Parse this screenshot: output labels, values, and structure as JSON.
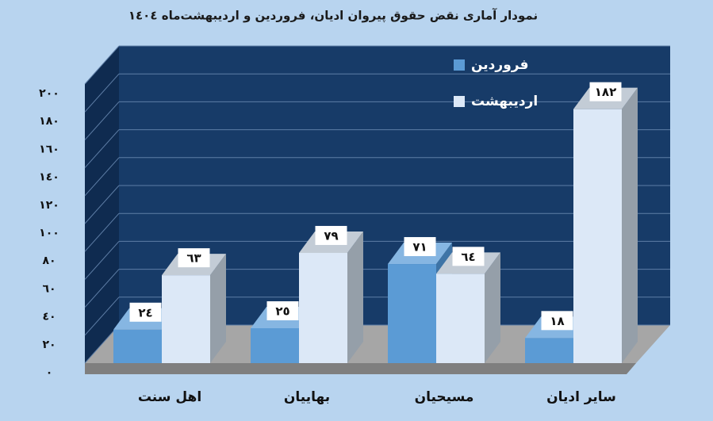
{
  "chart_data": {
    "type": "bar",
    "title": "نمودار آماری نقض حقوق پیروان ادیان، فروردین و اردیبهشت‌ماه ١٤٠٤",
    "categories": [
      "اهل سنت",
      "بهاییان",
      "مسیحیان",
      "سایر ادیان"
    ],
    "series": [
      {
        "name": "فروردین",
        "color": "#5b9bd5",
        "values": [
          24,
          25,
          71,
          18
        ],
        "value_labels": [
          "٢٤",
          "٢٥",
          "٧١",
          "١٨"
        ]
      },
      {
        "name": "اردیبهشت",
        "color": "#dce8f7",
        "values": [
          63,
          79,
          64,
          182
        ],
        "value_labels": [
          "٦٣",
          "٧٩",
          "٦٤",
          "١٨٢"
        ]
      }
    ],
    "ylim": [
      0,
      200
    ],
    "yticks": [
      {
        "value": 0,
        "label": "٠"
      },
      {
        "value": 20,
        "label": "٢٠"
      },
      {
        "value": 40,
        "label": "٤٠"
      },
      {
        "value": 60,
        "label": "٦٠"
      },
      {
        "value": 80,
        "label": "٨٠"
      },
      {
        "value": 100,
        "label": "١٠٠"
      },
      {
        "value": 120,
        "label": "١٢٠"
      },
      {
        "value": 140,
        "label": "١٤٠"
      },
      {
        "value": 160,
        "label": "١٦٠"
      },
      {
        "value": 180,
        "label": "١٨٠"
      },
      {
        "value": 200,
        "label": "٢٠٠"
      }
    ],
    "grid": true
  }
}
